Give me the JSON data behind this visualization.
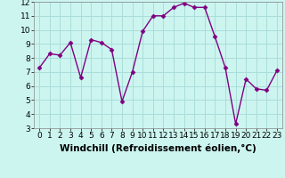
{
  "x": [
    0,
    1,
    2,
    3,
    4,
    5,
    6,
    7,
    8,
    9,
    10,
    11,
    12,
    13,
    14,
    15,
    16,
    17,
    18,
    19,
    20,
    21,
    22,
    23
  ],
  "y": [
    7.3,
    8.3,
    8.2,
    9.1,
    6.6,
    9.3,
    9.1,
    8.6,
    4.9,
    7.0,
    9.9,
    11.0,
    11.0,
    11.6,
    11.9,
    11.6,
    11.6,
    9.5,
    7.3,
    3.3,
    6.5,
    5.8,
    5.7,
    7.1
  ],
  "line_color": "#800080",
  "marker": "D",
  "marker_size": 2.5,
  "bg_color": "#ccf5f0",
  "grid_color": "#aaddda",
  "xlabel": "Windchill (Refroidissement éolien,°C)",
  "xlim": [
    -0.5,
    23.5
  ],
  "ylim": [
    3,
    12
  ],
  "yticks": [
    3,
    4,
    5,
    6,
    7,
    8,
    9,
    10,
    11,
    12
  ],
  "xticks": [
    0,
    1,
    2,
    3,
    4,
    5,
    6,
    7,
    8,
    9,
    10,
    11,
    12,
    13,
    14,
    15,
    16,
    17,
    18,
    19,
    20,
    21,
    22,
    23
  ],
  "xlabel_fontsize": 7.5,
  "tick_fontsize": 6.5,
  "line_width": 1.0
}
